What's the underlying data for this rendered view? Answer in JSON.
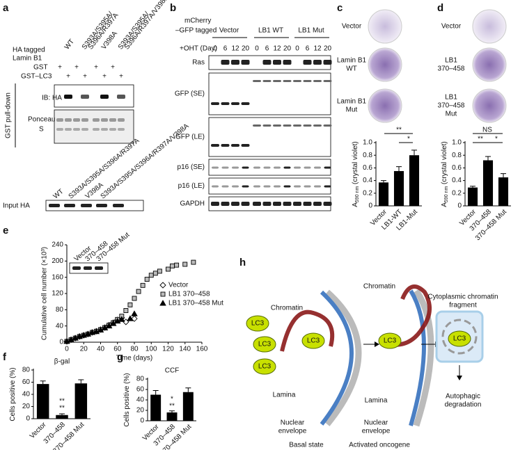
{
  "panel_a": {
    "letter": "a",
    "tag": [
      "HA tagged",
      "Lamin B1"
    ],
    "headers": [
      [
        "WT"
      ],
      [
        "S393A/S395A/",
        "S396A/R397A"
      ],
      [
        "V398A"
      ],
      [
        "S393A/S395A/",
        "S396A/R397A/V398A"
      ]
    ],
    "rows": [
      "GST",
      "GST–LC3"
    ],
    "sign": "+",
    "blots": [
      "IB: HA",
      "Ponceau",
      "S"
    ],
    "side": "GST pull-down",
    "input_headers": [
      "WT",
      "S393A/S395A/S396A/R397A",
      "V398A",
      "S393A/S395A/S396A/R397A/V398A"
    ],
    "input": "Input HA"
  },
  "panel_b": {
    "letter": "b",
    "tag": [
      "mCherry",
      "–GFP tagged"
    ],
    "groups": [
      "Vector",
      "LB1 WT",
      "LB1 Mut"
    ],
    "oht": "+OHT (Day)",
    "days": [
      "0",
      "6",
      "12",
      "20"
    ],
    "rows": [
      "Ras",
      "GFP (SE)",
      "GFP (LE)",
      "p16 (SE)",
      "p16 (LE)",
      "GAPDH"
    ]
  },
  "panel_c": {
    "letter": "c",
    "plates": [
      [
        "Vector"
      ],
      [
        "Lamin B1",
        "WT"
      ],
      [
        "Lamin B1",
        "Mut"
      ]
    ]
  },
  "panel_d": {
    "letter": "d",
    "plates": [
      [
        "Vector"
      ],
      [
        "LB1",
        "370–458"
      ],
      [
        "LB1",
        "370–458",
        "Mut"
      ]
    ]
  },
  "panel_e": {
    "letter": "e",
    "inset": [
      "Vector",
      "370–458",
      "370–458 Mut"
    ]
  },
  "panel_f": {
    "letter": "f"
  },
  "panel_g": {
    "letter": "g"
  },
  "chart_data": [
    {
      "type": "bar",
      "ylabel": "A",
      "ylabel_sub": "590 nm",
      "ylabel_rest": " (crystal violet)",
      "categories": [
        "Vector",
        "LB1-WT",
        "LB1-Mut"
      ],
      "values": [
        0.37,
        0.55,
        0.8
      ],
      "errors": [
        0.03,
        0.07,
        0.08
      ],
      "color": "#000000",
      "ylim": [
        0,
        1
      ],
      "yticks": [
        0,
        0.2,
        0.4,
        0.6,
        0.8,
        {
          "value": 1,
          "label": "1.0"
        }
      ],
      "annotations": [
        "**",
        "*"
      ]
    },
    {
      "type": "bar",
      "ylabel": "A",
      "ylabel_sub": "590 nm",
      "ylabel_rest": " (crystal violet)",
      "categories": [
        "Vector",
        "370–458",
        "370–458 Mut"
      ],
      "values": [
        0.29,
        0.72,
        0.45
      ],
      "errors": [
        0.02,
        0.06,
        0.06
      ],
      "color": "#000000",
      "ylim": [
        0,
        1
      ],
      "yticks": [
        0,
        0.2,
        0.4,
        0.6,
        0.8,
        {
          "value": 1,
          "label": "1.0"
        }
      ],
      "annotations": [
        "NS",
        "**",
        "*"
      ]
    },
    {
      "type": "scatter",
      "ylabel": "Cumulative cell number (×10³)",
      "xlabel": "Time (days)",
      "xlim": [
        0,
        160
      ],
      "xticks": [
        0,
        20,
        40,
        60,
        80,
        100,
        120,
        140,
        160
      ],
      "ylim": [
        0,
        240
      ],
      "yticks": [
        0,
        40,
        80,
        120,
        160,
        200,
        240
      ],
      "series": [
        {
          "name": "Vector",
          "color": "#ffffff",
          "marker": "diamond",
          "x": [
            0,
            5,
            10,
            15,
            20,
            25,
            30,
            35,
            40,
            45,
            50,
            55,
            60,
            65,
            70,
            80
          ],
          "values": [
            2,
            6,
            10,
            14,
            17,
            20,
            24,
            27,
            31,
            36,
            42,
            48,
            55,
            60,
            50,
            58
          ]
        },
        {
          "name": "LB1 370–458",
          "color": "#bbbbbb",
          "marker": "square",
          "x": [
            0,
            5,
            10,
            15,
            20,
            25,
            30,
            35,
            40,
            45,
            50,
            55,
            60,
            65,
            70,
            75,
            80,
            85,
            90,
            95,
            100,
            105,
            110,
            120,
            125,
            130,
            140,
            150
          ],
          "values": [
            2,
            6,
            10,
            14,
            17,
            20,
            24,
            27,
            31,
            36,
            42,
            48,
            56,
            64,
            78,
            92,
            108,
            125,
            140,
            155,
            165,
            170,
            175,
            180,
            188,
            190,
            192,
            197
          ]
        },
        {
          "name": "LB1 370–458 Mut",
          "color": "#000000",
          "marker": "triangle",
          "x": [
            0,
            5,
            10,
            15,
            20,
            25,
            30,
            35,
            40,
            45,
            50,
            55,
            60,
            65,
            75,
            80
          ],
          "values": [
            2,
            6,
            10,
            14,
            17,
            20,
            24,
            26,
            30,
            35,
            40,
            46,
            52,
            56,
            58,
            70
          ]
        }
      ]
    },
    {
      "type": "bar",
      "title": "β-gal",
      "ylabel": "Cells positive (%)",
      "categories": [
        "Vector",
        "370–458",
        "370–458 Mut"
      ],
      "values": [
        57,
        6,
        58
      ],
      "errors": [
        5,
        2,
        6
      ],
      "color": "#000000",
      "ylim": [
        0,
        80
      ],
      "yticks": [
        0,
        20,
        40,
        60,
        80
      ],
      "annotations": [
        "**",
        "**"
      ]
    },
    {
      "type": "bar",
      "title": "CCF",
      "ylabel": "Cells positive (%)",
      "categories": [
        "Vector",
        "370–458",
        "370–458 Mut"
      ],
      "values": [
        50,
        16,
        55
      ],
      "errors": [
        8,
        3,
        8
      ],
      "color": "#000000",
      "ylim": [
        0,
        80
      ],
      "yticks": [
        0,
        20,
        40,
        60,
        80
      ],
      "annotations": [
        "*",
        "**"
      ]
    }
  ],
  "panel_h": {
    "letter": "h",
    "lc3": "LC3",
    "labels": [
      "Chromatin",
      "Lamina",
      "Nuclear",
      "envelope",
      "Basal state",
      "Chromatin",
      "Lamina",
      "Nuclear",
      "envelope",
      "Activated oncogene",
      "Cytoplasmic chromatin",
      "fragment",
      "Autophagic",
      "degradation"
    ]
  }
}
